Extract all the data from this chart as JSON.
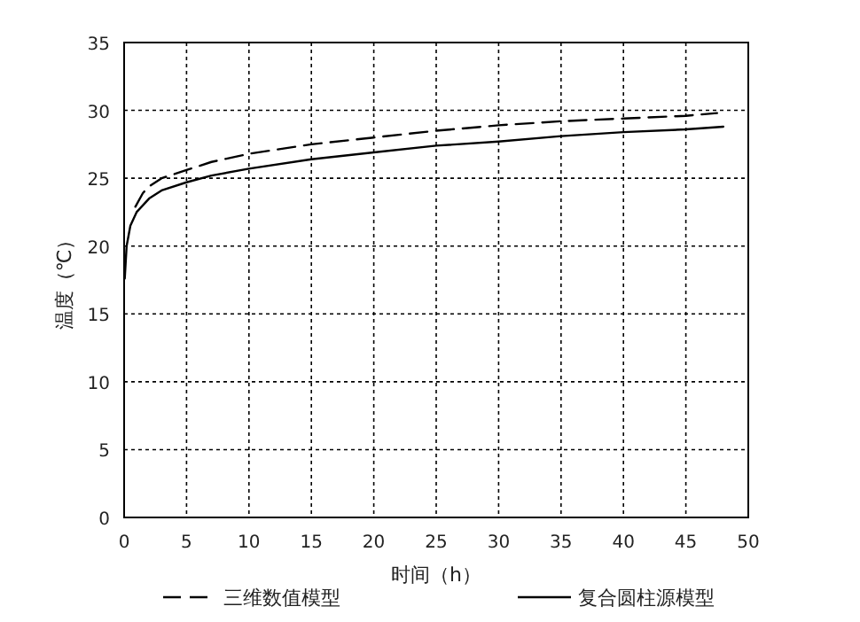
{
  "chart_data": {
    "type": "line",
    "xlabel": "时间（h）",
    "ylabel": "温度（℃）",
    "xlim": [
      0,
      50
    ],
    "ylim": [
      0,
      35
    ],
    "xticks": [
      0,
      5,
      10,
      15,
      20,
      25,
      30,
      35,
      40,
      45,
      50
    ],
    "yticks": [
      0,
      5,
      10,
      15,
      20,
      25,
      30,
      35
    ],
    "grid": true,
    "legend": "bottom",
    "marker": "none",
    "series": [
      {
        "name": "三维数值模型",
        "color": "#000000",
        "line_style": "dashed",
        "x": [
          0.9,
          1.5,
          2,
          3,
          5,
          7,
          10,
          15,
          20,
          25,
          30,
          35,
          40,
          45,
          47.5
        ],
        "values": [
          22.9,
          23.9,
          24.4,
          25.0,
          25.6,
          26.2,
          26.8,
          27.5,
          28.0,
          28.5,
          28.9,
          29.2,
          29.4,
          29.6,
          29.8
        ]
      },
      {
        "name": "复合圆柱源模型",
        "color": "#000000",
        "line_style": "solid",
        "x": [
          0.05,
          0.2,
          0.5,
          1,
          2,
          3,
          5,
          7,
          10,
          15,
          20,
          25,
          30,
          35,
          40,
          45,
          48
        ],
        "values": [
          17.6,
          20.0,
          21.5,
          22.5,
          23.5,
          24.1,
          24.7,
          25.2,
          25.7,
          26.4,
          26.9,
          27.4,
          27.7,
          28.1,
          28.4,
          28.6,
          28.8
        ]
      }
    ]
  }
}
